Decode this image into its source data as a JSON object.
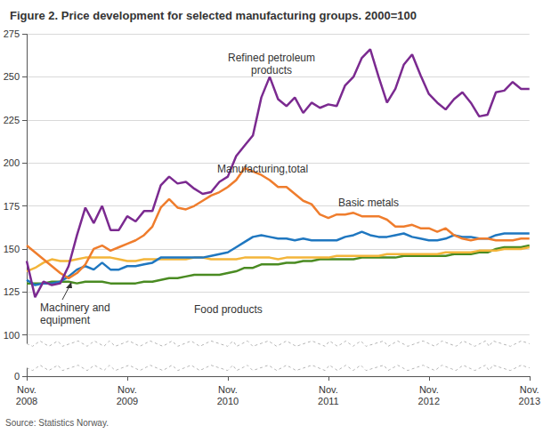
{
  "chart_data": {
    "type": "line",
    "title": "Figure 2. Price development for selected manufacturing groups. 2000=100",
    "source": "Source: Statistics Norway.",
    "categories": [
      "Nov.\n2008",
      null,
      null,
      null,
      null,
      null,
      null,
      null,
      null,
      null,
      null,
      null,
      "Nov.\n2009",
      null,
      null,
      null,
      null,
      null,
      null,
      null,
      null,
      null,
      null,
      null,
      "Nov.\n2010",
      null,
      null,
      null,
      null,
      null,
      null,
      null,
      null,
      null,
      null,
      null,
      "Nov.\n2011",
      null,
      null,
      null,
      null,
      null,
      null,
      null,
      null,
      null,
      null,
      null,
      "Nov.\n2012",
      null,
      null,
      null,
      null,
      null,
      null,
      null,
      null,
      null,
      null,
      null,
      "Nov.\n2013"
    ],
    "ylim": [
      0,
      275
    ],
    "yticks": [
      0,
      100,
      125,
      150,
      175,
      200,
      225,
      250,
      275
    ],
    "grid": true,
    "series": [
      {
        "name": "Refined petroleum\nproducts",
        "color": "#7b2a90",
        "values": [
          143,
          122,
          131,
          129,
          130,
          140,
          158,
          174,
          165,
          175,
          161,
          161,
          169,
          166,
          172,
          172,
          187,
          192,
          188,
          189,
          185,
          182,
          183,
          189,
          192,
          204,
          210,
          216,
          238,
          250,
          237,
          233,
          238,
          229,
          235,
          232,
          234,
          233,
          245,
          250,
          261,
          266,
          250,
          235,
          243,
          257,
          263,
          251,
          240,
          235,
          231,
          237,
          241,
          235,
          227,
          228,
          241,
          242,
          247,
          243,
          243
        ]
      },
      {
        "name": "Basic metals",
        "color": "#ef7d2d",
        "values": [
          152,
          148,
          144,
          140,
          136,
          133,
          136,
          141,
          150,
          152,
          149,
          151,
          153,
          155,
          158,
          163,
          174,
          179,
          174,
          173,
          175,
          178,
          181,
          183,
          186,
          190,
          197,
          195,
          193,
          190,
          186,
          186,
          182,
          178,
          176,
          170,
          168,
          170,
          170,
          171,
          169,
          169,
          169,
          167,
          163,
          163,
          164,
          162,
          162,
          160,
          162,
          158,
          156,
          155,
          156,
          156,
          155,
          155,
          155,
          156,
          156
        ]
      },
      {
        "name": "Manufacturing,total",
        "color": "#1f77c0",
        "values": [
          132,
          129,
          130,
          130,
          131,
          134,
          138,
          140,
          138,
          142,
          138,
          138,
          140,
          140,
          141,
          142,
          145,
          145,
          145,
          145,
          145,
          145,
          146,
          147,
          148,
          151,
          154,
          157,
          158,
          157,
          156,
          156,
          155,
          156,
          155,
          155,
          155,
          155,
          157,
          158,
          160,
          158,
          157,
          157,
          158,
          159,
          157,
          156,
          155,
          155,
          156,
          158,
          157,
          157,
          156,
          156,
          158,
          159,
          159,
          159,
          159
        ]
      },
      {
        "name": "Machinery and\nequipment",
        "color": "#f3b53a",
        "values": [
          137,
          139,
          142,
          144,
          143,
          143,
          144,
          145,
          145,
          145,
          145,
          144,
          143,
          143,
          144,
          144,
          144,
          144,
          144,
          144,
          145,
          145,
          144,
          144,
          144,
          144,
          145,
          145,
          145,
          145,
          144,
          145,
          145,
          145,
          145,
          145,
          145,
          146,
          146,
          146,
          146,
          146,
          146,
          147,
          147,
          147,
          147,
          147,
          147,
          147,
          148,
          148,
          148,
          148,
          149,
          149,
          149,
          150,
          150,
          150,
          151
        ]
      },
      {
        "name": "Food products",
        "color": "#4a8b22",
        "values": [
          130,
          130,
          130,
          131,
          131,
          131,
          130,
          131,
          131,
          131,
          130,
          130,
          130,
          130,
          131,
          131,
          132,
          133,
          133,
          134,
          135,
          135,
          135,
          135,
          136,
          137,
          139,
          139,
          141,
          141,
          141,
          142,
          142,
          143,
          143,
          144,
          144,
          144,
          144,
          144,
          145,
          145,
          145,
          145,
          145,
          146,
          146,
          146,
          146,
          146,
          146,
          147,
          147,
          147,
          148,
          148,
          150,
          151,
          151,
          151,
          152
        ]
      }
    ]
  }
}
